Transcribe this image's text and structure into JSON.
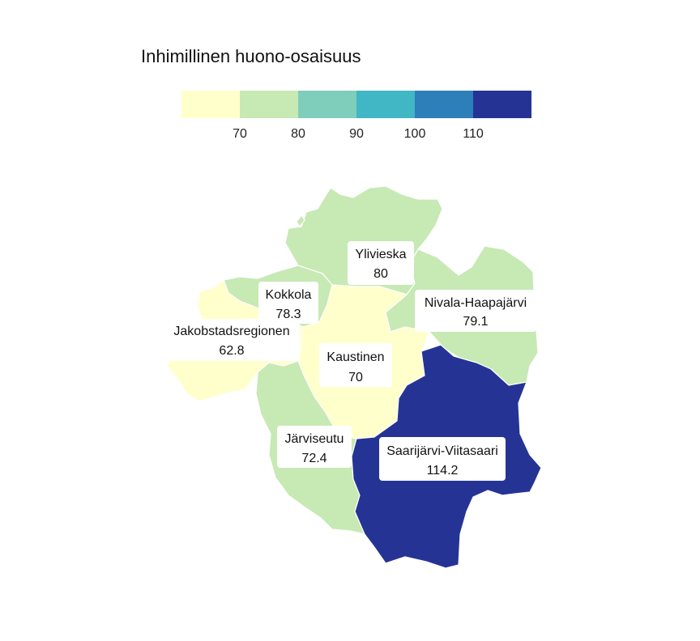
{
  "legend": {
    "title": "Inhimillinen huono-osaisuus",
    "ticks": [
      "70",
      "80",
      "90",
      "100",
      "110"
    ],
    "swatches": [
      "#ffffcc",
      "#c7e9b4",
      "#7fcdbb",
      "#41b6c4",
      "#2c7fb8",
      "#253494"
    ]
  },
  "regions": [
    {
      "name": "Ylivieska",
      "value": "80",
      "color": "#c7e9b4"
    },
    {
      "name": "Kokkola",
      "value": "78.3",
      "color": "#c7e9b4"
    },
    {
      "name": "Nivala-Haapajärvi",
      "value": "79.1",
      "color": "#c7e9b4"
    },
    {
      "name": "Jakobstadsregionen",
      "value": "62.8",
      "color": "#ffffcc"
    },
    {
      "name": "Kaustinen",
      "value": "70",
      "color": "#ffffcc"
    },
    {
      "name": "Järviseutu",
      "value": "72.4",
      "color": "#c7e9b4"
    },
    {
      "name": "Saarijärvi-Viitasaari",
      "value": "114.2",
      "color": "#253494"
    }
  ]
}
